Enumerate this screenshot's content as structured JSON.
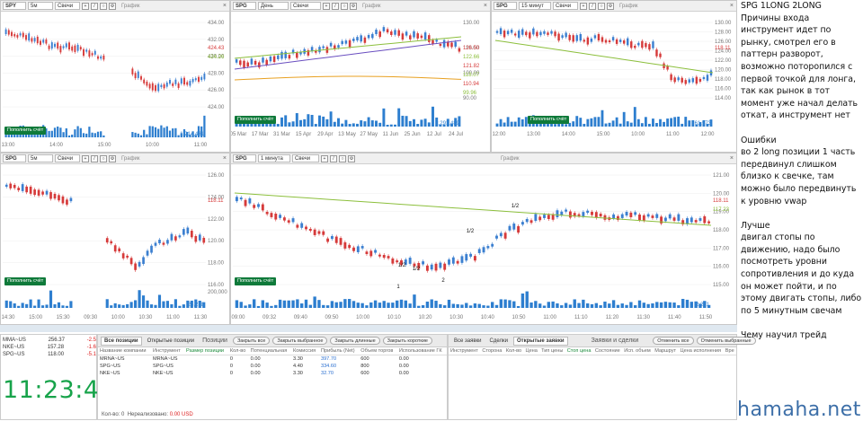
{
  "panels": [
    {
      "id": "p1",
      "symbol": "SPY",
      "interval": "5м",
      "type": "Свечи",
      "label": "График",
      "button": "Пополнить счёт",
      "yticks": [
        "434.00",
        "432.00",
        "430.00",
        "428.00",
        "426.00",
        "424.00"
      ],
      "price_tags": [
        "424.43",
        "424.26"
      ],
      "xticks": [
        "13:00",
        "14:00",
        "15:00",
        "10:00",
        "11:00"
      ],
      "volume_label": "1,214,431"
    },
    {
      "id": "p2",
      "symbol": "SPG",
      "interval": "День",
      "type": "Свечи",
      "label": "График",
      "button": "Пополнить счёт",
      "yticks": [
        "130.00",
        "110.00",
        "100.00",
        "90.00"
      ],
      "price_tags": [
        "126.50",
        "122.66",
        "121.82",
        "118.07",
        "110.94",
        "99.96"
      ],
      "xticks": [
        "05 Mar",
        "17 Mar",
        "31 Mar",
        "15 Apr",
        "29 Apr",
        "13 May",
        "27 May",
        "11 Jun",
        "25 Jun",
        "12 Jul",
        "24 Jul"
      ],
      "volume_label": "2,291,489"
    },
    {
      "id": "p3",
      "symbol": "SPG",
      "interval": "15 минут",
      "type": "Свечи",
      "label": "График",
      "button": "Пополнить счёт",
      "yticks": [
        "130.00",
        "128.00",
        "126.00",
        "124.00",
        "122.00",
        "120.00",
        "118.00",
        "116.00",
        "114.00"
      ],
      "price_tags": [
        "118.11"
      ],
      "xticks": [
        "12:00",
        "13:00",
        "14:00",
        "15:00",
        "10:00",
        "11:00",
        "12:00"
      ],
      "volume_label": "61,973"
    },
    {
      "id": "p4",
      "symbol": "SPG",
      "interval": "5м",
      "type": "Свечи",
      "label": "График",
      "button": "Пополнить счёт",
      "yticks": [
        "126.00",
        "124.00",
        "122.00",
        "120.00",
        "118.00",
        "116.00"
      ],
      "price_tags": [
        "118.11"
      ],
      "xticks": [
        "14:30",
        "15:00",
        "15:30",
        "09:30",
        "10:00",
        "10:30",
        "11:00",
        "11:30"
      ],
      "volume_label": "24,278",
      "vol_top": "200,000"
    },
    {
      "id": "p5",
      "symbol": "SPG",
      "interval": "1 минута",
      "type": "Свечи",
      "label": "График",
      "button": "Пополнить счёт",
      "yticks": [
        "121.00",
        "120.00",
        "119.00",
        "118.00",
        "117.00",
        "116.00",
        "115.00"
      ],
      "price_tags": [
        "118.11",
        "117.23"
      ],
      "xticks": [
        "09:00",
        "09:32",
        "09:40",
        "09:50",
        "10:00",
        "10:10",
        "10:20",
        "10:30",
        "10:40",
        "10:50",
        "11:00",
        "11:10",
        "11:20",
        "11:30",
        "11:40",
        "11:50"
      ],
      "volume_label": "2,281",
      "annotations": [
        "1/2",
        "1/2",
        "1/2",
        "1/2",
        "1",
        "2"
      ]
    }
  ],
  "notes": "SPG 1LONG 2LONG\nПричины входа инструмент идет по рынку, смотрел его в паттерн разворот, возможно поторопился с первой точкой для лонга, так как рынок в тот момент уже начал делать откат, а инструмент нет\n\nОшибки\nво 2 long позиции 1 часть передвинул слишком близко к свечке, там можно было передвинуть к уровню vwap\n\nЛучше\nдвигал стопы по движению, надо было посмотреть уровни сопротивления и до куда он может пойти, и по этому двигать стопы, либо по 5 минутным свечам\n\nЧему научил трейд",
  "clock": {
    "time": "11:23:43",
    "rows": [
      {
        "sym": "MMA~US",
        "a": "256.37",
        "b": "-2.5"
      },
      {
        "sym": "NKE~US",
        "a": "157.28",
        "b": "-1.6"
      },
      {
        "sym": "SPG~US",
        "a": "118.00",
        "b": "-5.1"
      }
    ]
  },
  "positions": {
    "tabs": [
      "Все позиции",
      "Открытые позиции",
      "Позиции"
    ],
    "buttons": [
      "Закрыть все",
      "Закрыть выбранное",
      "Закрыть длинные",
      "Закрыть короткие"
    ],
    "columns": [
      "Название компании",
      "Инструмент",
      "Размер позиции",
      "Кол-во",
      "Потенциальная",
      "Комиссия",
      "Прибыль (Net)",
      "Объем торгов",
      "Использование ГК"
    ],
    "rows": [
      {
        "name": "MRNA~US",
        "inst": "MRNA~US",
        "size": "",
        "qty": "0",
        "pot": "0.00",
        "com": "3.30",
        "pnl": "397.70",
        "vol": "600",
        "use": "0.00"
      },
      {
        "name": "SPG~US",
        "inst": "SPG~US",
        "size": "",
        "qty": "0",
        "pot": "0.00",
        "com": "4.40",
        "pnl": "334.60",
        "vol": "800",
        "use": "0.00"
      },
      {
        "name": "NKE~US",
        "inst": "NKE~US",
        "size": "",
        "qty": "0",
        "pot": "0.00",
        "com": "3.30",
        "pnl": "32.70",
        "vol": "600",
        "use": "0.00"
      }
    ],
    "footer_count_label": "Кол-во:",
    "footer_count": "0",
    "footer_unreal_label": "Нереализовано:",
    "footer_unreal": "0.00 USD"
  },
  "orders": {
    "tabs": [
      "Все заявки",
      "Сделки",
      "Открытые заявки",
      "Заявки и сделки"
    ],
    "buttons": [
      "Отменить все",
      "Отменить выбранные"
    ],
    "columns": [
      "Инструмент",
      "Сторона",
      "Кол-во",
      "Цена",
      "Тип цены",
      "Стоп цена",
      "Состояние",
      "Исп. объем",
      "Маршрут",
      "Цена исполнения",
      "Вре"
    ]
  },
  "watermark": "hamaha.net",
  "colors": {
    "up": "#3b7fd0",
    "down": "#d63a3a",
    "vwap": "#8cbf3c",
    "ma": "#6a4fc0",
    "ma2": "#e8a020",
    "button": "#0f7a3a",
    "clock": "#17a34a"
  }
}
